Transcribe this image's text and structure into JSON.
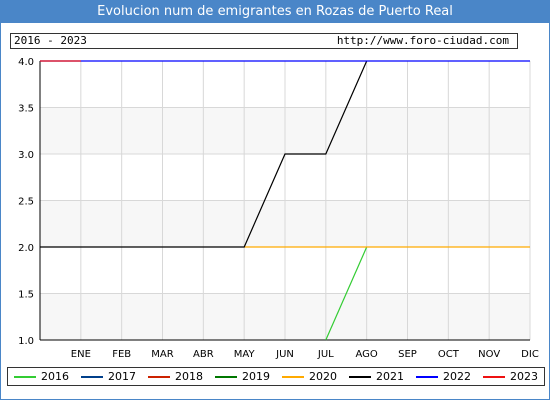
{
  "header": {
    "title": "Evolucion num de emigrantes en Rozas de Puerto Real",
    "range_label": "2016 - 2023",
    "site_label": "http://www.foro-ciudad.com"
  },
  "colors": {
    "title_bar": "#4a86c8",
    "plot_background": "#f7f7f7",
    "grid": "#d8d8d8"
  },
  "chart_data": {
    "type": "line",
    "title": "Evolucion num de emigrantes en Rozas de Puerto Real",
    "xlabel": "",
    "ylabel": "",
    "categories": [
      "ENE",
      "FEB",
      "MAR",
      "ABR",
      "MAY",
      "JUN",
      "JUL",
      "AGO",
      "SEP",
      "OCT",
      "NOV",
      "DIC"
    ],
    "ylim": [
      1.0,
      4.0
    ],
    "yticks": [
      "1.0",
      "1.5",
      "2.0",
      "2.5",
      "3.0",
      "3.5",
      "4.0"
    ],
    "grid": true,
    "legend_position": "bottom",
    "series": [
      {
        "name": "2016",
        "color": "#33cc33",
        "points": [
          [
            7,
            1.0
          ],
          [
            8,
            2.0
          ]
        ]
      },
      {
        "name": "2017",
        "color": "#003f8a",
        "points": []
      },
      {
        "name": "2018",
        "color": "#cc2200",
        "points": []
      },
      {
        "name": "2019",
        "color": "#007700",
        "points": []
      },
      {
        "name": "2020",
        "color": "#ffaa00",
        "points": [
          [
            5,
            2.0
          ],
          [
            12,
            2.0
          ]
        ]
      },
      {
        "name": "2021",
        "color": "#000000",
        "points": [
          [
            0,
            2.0
          ],
          [
            5,
            2.0
          ],
          [
            6,
            3.0
          ],
          [
            7,
            3.0
          ],
          [
            8,
            4.0
          ]
        ]
      },
      {
        "name": "2022",
        "color": "#0000ff",
        "points": [
          [
            0,
            4.0
          ],
          [
            12,
            4.0
          ]
        ]
      },
      {
        "name": "2023",
        "color": "#ee1111",
        "points": [
          [
            0,
            4.0
          ],
          [
            1,
            4.0
          ]
        ]
      }
    ]
  }
}
